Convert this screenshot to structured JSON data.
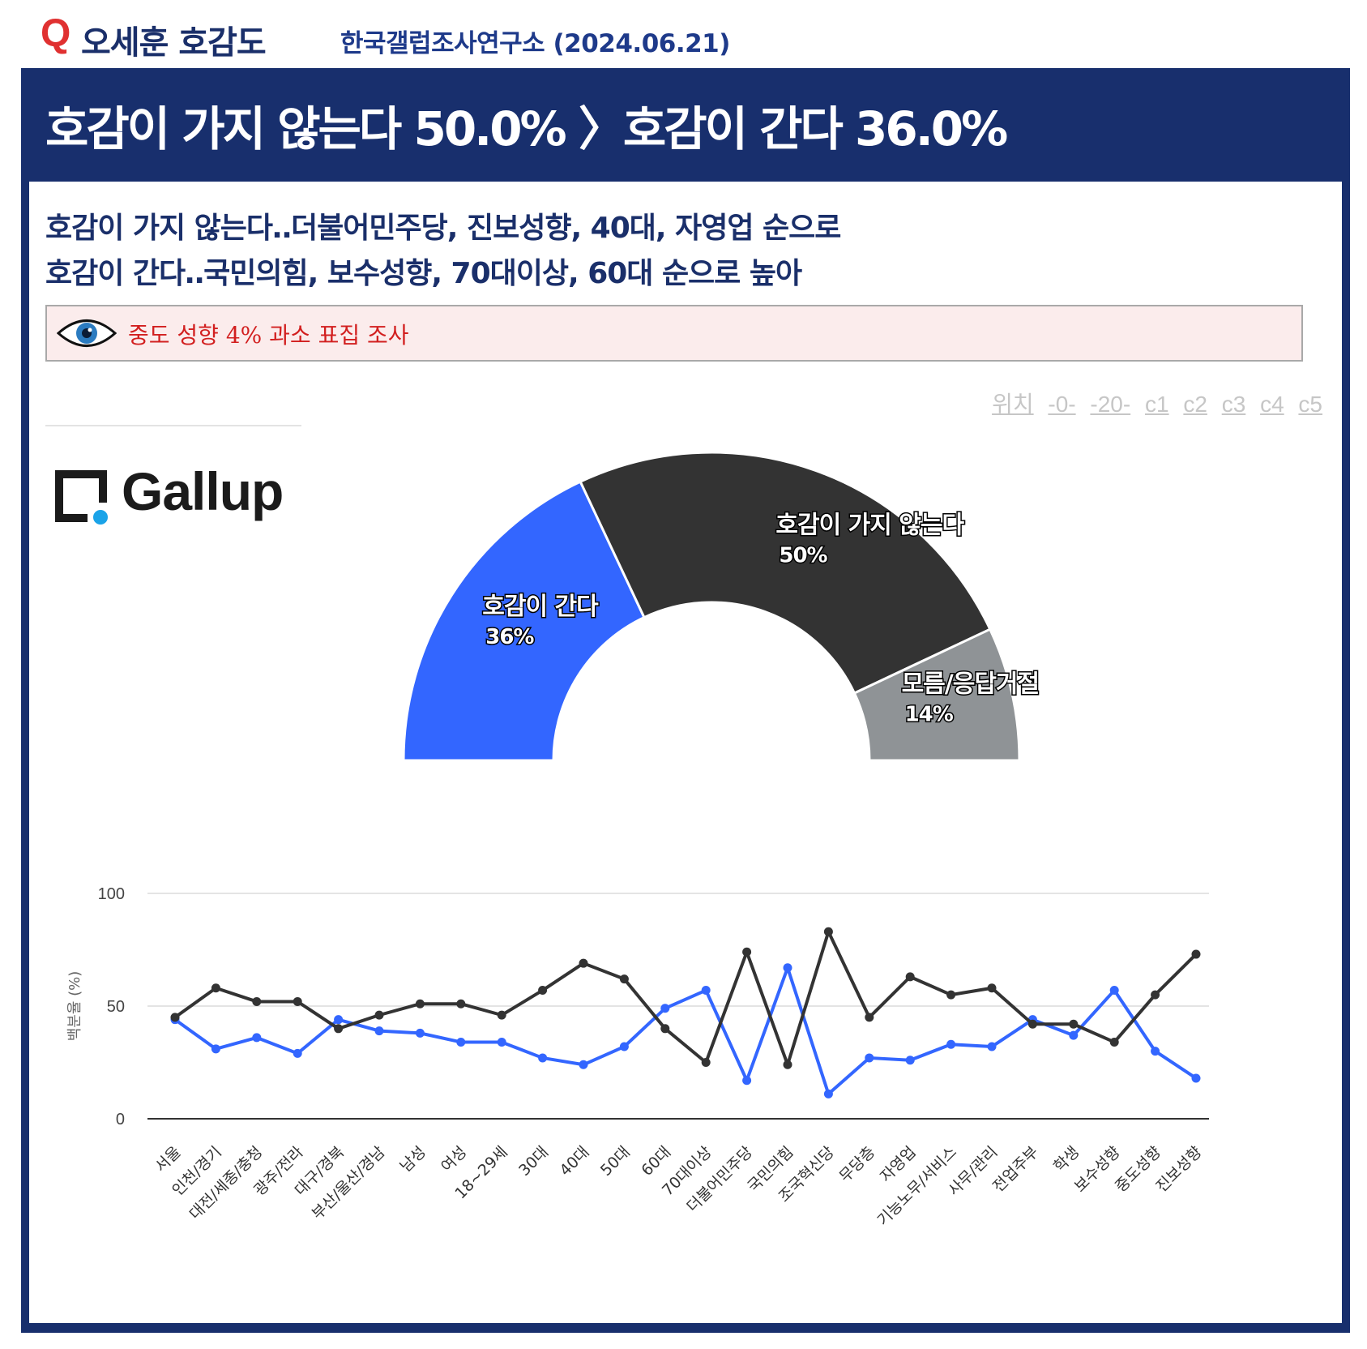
{
  "header": {
    "logo": "Q",
    "title": "오세훈 호감도",
    "source": "한국갤럽조사연구소 (2024.06.21)"
  },
  "headline": "호감이 가지 않는다 50.0% 〉호감이 간다 36.0%",
  "subheads": [
    "호감이 가지 않는다‥더불어민주당, 진보성향, 40대, 자영업 순으로",
    "호감이 간다‥국민의힘, 보수성향, 70대이상, 60대 순으로 높아"
  ],
  "notice": {
    "icon": "eye-icon",
    "text": "중도 성향 4% 과소 표집 조사"
  },
  "position_links": {
    "label": "위치",
    "items": [
      "-0-",
      "-20-",
      "c1",
      "c2",
      "c3",
      "c4",
      "c5"
    ]
  },
  "logo_text": "Gallup",
  "colors": {
    "blue": "#3366ff",
    "dark": "#333333",
    "gray": "#8f9396",
    "navy": "#182f6d"
  },
  "chart_data": [
    {
      "type": "pie",
      "style": "half-donut",
      "labels": [
        "호감이 간다",
        "호감이 가지 않는다",
        "모름/응답거절"
      ],
      "values": [
        36,
        50,
        14
      ],
      "value_labels": [
        "36%",
        "50%",
        "14%"
      ],
      "colors": [
        "#3366ff",
        "#333333",
        "#8f9396"
      ]
    },
    {
      "type": "line",
      "ylabel": "백분율 (%)",
      "ylim": [
        0,
        100
      ],
      "yticks": [
        "0",
        "50",
        "100"
      ],
      "grid": true,
      "categories": [
        "서울",
        "인천/경기",
        "대전/세종/충청",
        "광주/전라",
        "대구/경북",
        "부산/울산/경남",
        "남성",
        "여성",
        "18~29세",
        "30대",
        "40대",
        "50대",
        "60대",
        "70대이상",
        "더불어민주당",
        "국민의힘",
        "조국혁신당",
        "무당층",
        "자영업",
        "기능노무/서비스",
        "사무/관리",
        "전업주부",
        "학생",
        "보수성향",
        "중도성향",
        "진보성향"
      ],
      "series": [
        {
          "color": "#3366ff",
          "values": [
            44,
            31,
            36,
            29,
            44,
            39,
            38,
            34,
            34,
            27,
            24,
            32,
            49,
            57,
            17,
            67,
            11,
            27,
            26,
            33,
            32,
            44,
            37,
            57,
            30,
            18
          ]
        },
        {
          "color": "#333333",
          "values": [
            45,
            58,
            52,
            52,
            40,
            46,
            51,
            51,
            46,
            57,
            69,
            62,
            40,
            25,
            74,
            24,
            83,
            45,
            63,
            55,
            58,
            42,
            42,
            34,
            55,
            73
          ]
        }
      ]
    }
  ]
}
